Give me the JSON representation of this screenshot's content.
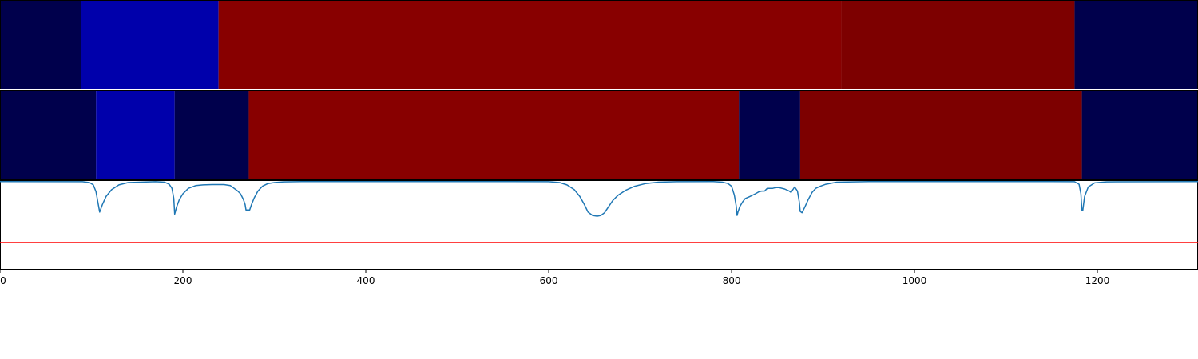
{
  "chart_data": [
    {
      "type": "heatmap",
      "panel": "segments-top",
      "xlim": [
        0,
        1310
      ],
      "grid": false,
      "segments": [
        {
          "start": 0,
          "end": 89,
          "color": "#00004c"
        },
        {
          "start": 89,
          "end": 239,
          "color": "#0000ab"
        },
        {
          "start": 239,
          "end": 920,
          "color": "#880000"
        },
        {
          "start": 920,
          "end": 1175,
          "color": "#7d0000"
        },
        {
          "start": 1175,
          "end": 1310,
          "color": "#00004c"
        }
      ]
    },
    {
      "type": "heatmap",
      "panel": "segments-bottom",
      "xlim": [
        0,
        1310
      ],
      "grid": false,
      "segments": [
        {
          "start": 0,
          "end": 105,
          "color": "#00004c"
        },
        {
          "start": 105,
          "end": 191,
          "color": "#0000ab"
        },
        {
          "start": 191,
          "end": 272,
          "color": "#00004c"
        },
        {
          "start": 272,
          "end": 808,
          "color": "#880000"
        },
        {
          "start": 808,
          "end": 875,
          "color": "#00004c"
        },
        {
          "start": 875,
          "end": 1183,
          "color": "#7d0000"
        },
        {
          "start": 1183,
          "end": 1310,
          "color": "#00004c"
        }
      ]
    },
    {
      "type": "line",
      "panel": "signal",
      "xlim": [
        0,
        1310
      ],
      "ylim": [
        -0.3,
        1.02
      ],
      "grid": false,
      "xticks": [
        0,
        200,
        400,
        600,
        800,
        1000,
        1200
      ],
      "xtick_labels": [
        "0",
        "200",
        "400",
        "600",
        "800",
        "1000",
        "1200"
      ],
      "threshold": {
        "value": 0.1,
        "color": "#ff0000"
      },
      "series": [
        {
          "color": "#1f77b4",
          "x": [
            0,
            90,
            98,
            102,
            105,
            107,
            109,
            112,
            116,
            122,
            130,
            140,
            170,
            180,
            185,
            188,
            190,
            191,
            193,
            196,
            200,
            206,
            214,
            222,
            232,
            245,
            252,
            256,
            260,
            263,
            266,
            268,
            269,
            271,
            273,
            275,
            278,
            282,
            287,
            293,
            300,
            310,
            330,
            560,
            600,
            612,
            620,
            628,
            634,
            639,
            643,
            648,
            653,
            657,
            661,
            665,
            670,
            676,
            684,
            694,
            706,
            720,
            740,
            780,
            790,
            796,
            800,
            803,
            805,
            806,
            807,
            809,
            812,
            815,
            820,
            826,
            830,
            833,
            836,
            839,
            842,
            845,
            848,
            852,
            858,
            863,
            865,
            867,
            869,
            872,
            874,
            875,
            877,
            880,
            884,
            888,
            892,
            897,
            903,
            915,
            950,
            1150,
            1175,
            1180,
            1182,
            1183,
            1184,
            1186,
            1190,
            1197,
            1210,
            1310
          ],
          "y": [
            1.0,
            0.998,
            0.985,
            0.95,
            0.85,
            0.7,
            0.55,
            0.66,
            0.78,
            0.88,
            0.95,
            0.985,
            0.998,
            0.99,
            0.96,
            0.9,
            0.75,
            0.52,
            0.62,
            0.73,
            0.82,
            0.9,
            0.94,
            0.95,
            0.955,
            0.955,
            0.94,
            0.9,
            0.86,
            0.82,
            0.74,
            0.66,
            0.58,
            0.58,
            0.58,
            0.66,
            0.76,
            0.86,
            0.93,
            0.97,
            0.985,
            0.995,
            1.0,
            1.0,
            0.998,
            0.985,
            0.95,
            0.88,
            0.78,
            0.66,
            0.55,
            0.5,
            0.49,
            0.5,
            0.54,
            0.62,
            0.72,
            0.8,
            0.87,
            0.93,
            0.97,
            0.99,
            0.998,
            1.0,
            0.99,
            0.97,
            0.93,
            0.8,
            0.64,
            0.5,
            0.55,
            0.63,
            0.7,
            0.75,
            0.78,
            0.82,
            0.85,
            0.86,
            0.86,
            0.9,
            0.9,
            0.9,
            0.91,
            0.91,
            0.89,
            0.86,
            0.84,
            0.88,
            0.92,
            0.86,
            0.7,
            0.56,
            0.54,
            0.62,
            0.74,
            0.84,
            0.9,
            0.93,
            0.96,
            0.99,
            1.0,
            1.0,
            0.998,
            0.96,
            0.82,
            0.58,
            0.57,
            0.78,
            0.92,
            0.98,
            0.995,
            1.0
          ]
        }
      ]
    }
  ]
}
